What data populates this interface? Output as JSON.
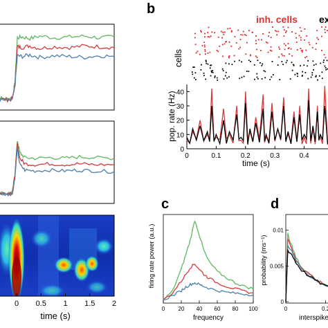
{
  "figure": {
    "panel_letters": {
      "b": "b",
      "c": "c",
      "d": "d"
    },
    "colors": {
      "green": "#5db85d",
      "red": "#d63a3a",
      "blue": "#4a7fae",
      "black": "#000000"
    }
  },
  "chart_data": [
    {
      "id": "left-top",
      "type": "line",
      "title": "",
      "x": [
        -0.45,
        -0.3,
        -0.15,
        -0.05,
        0,
        0.05,
        0.15,
        0.3,
        0.5,
        0.8,
        1.1,
        1.4,
        1.7,
        2.0
      ],
      "series": [
        {
          "color": "green",
          "values": [
            0.1,
            0.12,
            0.11,
            0.12,
            0.3,
            0.86,
            0.87,
            0.85,
            0.88,
            0.86,
            0.87,
            0.88,
            0.86,
            0.87
          ]
        },
        {
          "color": "red",
          "values": [
            0.1,
            0.11,
            0.1,
            0.11,
            0.28,
            0.75,
            0.74,
            0.76,
            0.73,
            0.75,
            0.74,
            0.76,
            0.75,
            0.74
          ]
        },
        {
          "color": "blue",
          "values": [
            0.09,
            0.1,
            0.09,
            0.1,
            0.26,
            0.64,
            0.63,
            0.65,
            0.62,
            0.64,
            0.63,
            0.62,
            0.64,
            0.63
          ]
        }
      ]
    },
    {
      "id": "left-middle",
      "type": "line",
      "title": "",
      "x": [
        -0.45,
        -0.3,
        -0.15,
        -0.05,
        0,
        0.05,
        0.1,
        0.2,
        0.4,
        0.7,
        1.0,
        1.3,
        1.6,
        2.0
      ],
      "series": [
        {
          "color": "green",
          "values": [
            0.1,
            0.11,
            0.1,
            0.12,
            0.35,
            0.78,
            0.62,
            0.56,
            0.55,
            0.56,
            0.55,
            0.57,
            0.56,
            0.55
          ]
        },
        {
          "color": "red",
          "values": [
            0.1,
            0.1,
            0.11,
            0.11,
            0.33,
            0.74,
            0.55,
            0.48,
            0.47,
            0.48,
            0.47,
            0.48,
            0.47,
            0.47
          ]
        },
        {
          "color": "blue",
          "values": [
            0.09,
            0.1,
            0.09,
            0.1,
            0.3,
            0.68,
            0.47,
            0.4,
            0.39,
            0.4,
            0.39,
            0.4,
            0.39,
            0.38
          ]
        }
      ]
    },
    {
      "id": "left-bottom",
      "type": "heatmap",
      "title": "",
      "xlabel": "time (s)",
      "xlim": [
        -0.45,
        2
      ],
      "x_ticks": [
        "0",
        "0.5",
        "1",
        "1.5",
        "2"
      ],
      "x_tick_values": [
        0,
        0.5,
        1,
        1.5,
        2
      ]
    },
    {
      "id": "b-raster",
      "type": "scatter",
      "ylabel": "cells",
      "annotations": [
        "inh. cells",
        "ex"
      ]
    },
    {
      "id": "b-rate",
      "type": "line",
      "xlabel": "time (s)",
      "ylabel": "pop. rate (Hz)",
      "xlim": [
        0,
        0.5
      ],
      "ylim": [
        0,
        45
      ],
      "x_ticks": [
        "0",
        "0.1",
        "0.2",
        "0.3",
        "0.4"
      ],
      "y_ticks": [
        "0",
        "10",
        "20",
        "30",
        "40"
      ],
      "x": [
        0,
        0.02,
        0.045,
        0.07,
        0.085,
        0.1,
        0.125,
        0.145,
        0.17,
        0.185,
        0.2,
        0.215,
        0.235,
        0.26,
        0.27,
        0.29,
        0.31,
        0.33,
        0.345,
        0.365,
        0.385,
        0.4,
        0.415,
        0.43,
        0.445,
        0.455,
        0.47,
        0.49
      ],
      "series": [
        {
          "color": "red",
          "values": [
            6,
            12,
            20,
            10,
            42,
            8,
            28,
            10,
            30,
            6,
            40,
            12,
            22,
            38,
            8,
            32,
            14,
            36,
            10,
            26,
            30,
            8,
            42,
            14,
            30,
            8,
            44,
            10
          ]
        },
        {
          "color": "black",
          "values": [
            8,
            14,
            16,
            12,
            30,
            10,
            20,
            12,
            24,
            8,
            32,
            14,
            18,
            28,
            10,
            26,
            14,
            30,
            12,
            22,
            24,
            10,
            34,
            16,
            26,
            10,
            30,
            12
          ]
        }
      ]
    },
    {
      "id": "c",
      "type": "line",
      "xlabel": "frequency",
      "ylabel": "firing rate power (a.u.)",
      "xlim": [
        0,
        100
      ],
      "x_ticks": [
        "0",
        "20",
        "40",
        "60",
        "80",
        "100"
      ],
      "x": [
        0,
        10,
        20,
        25,
        30,
        35,
        40,
        45,
        50,
        60,
        70,
        80,
        90,
        100
      ],
      "series": [
        {
          "color": "green",
          "values": [
            0.02,
            0.12,
            0.38,
            0.55,
            0.72,
            0.95,
            0.78,
            0.6,
            0.48,
            0.35,
            0.28,
            0.22,
            0.18,
            0.15
          ]
        },
        {
          "color": "red",
          "values": [
            0.02,
            0.1,
            0.24,
            0.32,
            0.4,
            0.44,
            0.38,
            0.32,
            0.28,
            0.22,
            0.18,
            0.15,
            0.12,
            0.1
          ]
        },
        {
          "color": "blue",
          "values": [
            0.02,
            0.07,
            0.13,
            0.17,
            0.2,
            0.22,
            0.2,
            0.18,
            0.16,
            0.13,
            0.11,
            0.1,
            0.09,
            0.08
          ]
        }
      ]
    },
    {
      "id": "d",
      "type": "line",
      "xlabel": "interspike",
      "ylabel": "probability (ms⁻¹)",
      "y_ticks": [
        "0",
        "0.005",
        "0.01"
      ],
      "ylim": [
        0,
        0.012
      ],
      "x_ticks": [
        "0",
        "0.2"
      ],
      "x": [
        0,
        0.01,
        0.03,
        0.05,
        0.08,
        0.12,
        0.16,
        0.2,
        0.25,
        0.3,
        0.35
      ],
      "series": [
        {
          "color": "green",
          "values": [
            0.0,
            0.0095,
            0.0078,
            0.0062,
            0.0048,
            0.0038,
            0.003,
            0.0024,
            0.0018,
            0.0014,
            0.0011
          ]
        },
        {
          "color": "red",
          "values": [
            0.0,
            0.0088,
            0.0074,
            0.006,
            0.0047,
            0.0037,
            0.0029,
            0.0023,
            0.0018,
            0.0014,
            0.0011
          ]
        },
        {
          "color": "blue",
          "values": [
            0.0,
            0.008,
            0.007,
            0.0057,
            0.0046,
            0.0036,
            0.0029,
            0.0023,
            0.0018,
            0.0014,
            0.0011
          ]
        },
        {
          "color": "black",
          "values": [
            0.0,
            0.0072,
            0.0066,
            0.0055,
            0.0044,
            0.0035,
            0.0028,
            0.0022,
            0.0017,
            0.0013,
            0.001
          ]
        }
      ]
    }
  ]
}
